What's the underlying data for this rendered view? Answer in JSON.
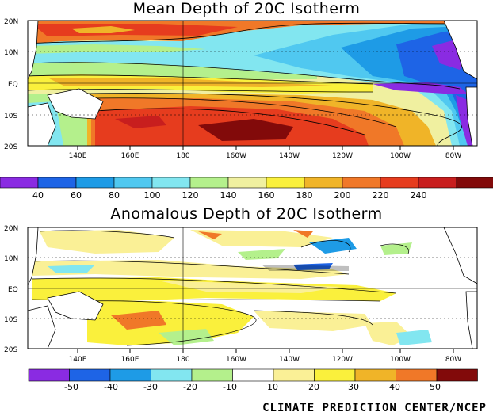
{
  "maps": [
    {
      "title": "Mean Depth of 20C Isotherm",
      "lat_labels": [
        "20N",
        "10N",
        "EQ",
        "10S",
        "20S"
      ],
      "lon_labels": [
        "140E",
        "160E",
        "180",
        "160W",
        "140W",
        "120W",
        "100W",
        "80W"
      ],
      "colorbar": {
        "labels": [
          "40",
          "60",
          "80",
          "100",
          "120",
          "140",
          "160",
          "180",
          "200",
          "220",
          "240"
        ],
        "colors": [
          "#8a2be2",
          "#1e64e6",
          "#1e9be6",
          "#50c8f0",
          "#82e6f0",
          "#b4f08c",
          "#f0f0a0",
          "#faf03c",
          "#f0b428",
          "#f07828",
          "#e63c1e",
          "#c81e1e",
          "#820a0a"
        ]
      }
    },
    {
      "title": "Anomalous Depth of 20C Isotherm",
      "lat_labels": [
        "20N",
        "10N",
        "EQ",
        "10S",
        "20S"
      ],
      "lon_labels": [
        "140E",
        "160E",
        "180",
        "160W",
        "140W",
        "120W",
        "100W",
        "80W"
      ],
      "colorbar": {
        "labels": [
          "-50",
          "-40",
          "-30",
          "-20",
          "-10",
          "10",
          "20",
          "30",
          "40",
          "50"
        ],
        "colors": [
          "#8a2be2",
          "#1e64e6",
          "#1e9be6",
          "#82e6f0",
          "#b4f08c",
          "#ffffff",
          "#faf096",
          "#faf03c",
          "#f0b428",
          "#f07828",
          "#820a0a"
        ]
      }
    }
  ],
  "credit": "CLIMATE PREDICTION CENTER/NCEP"
}
